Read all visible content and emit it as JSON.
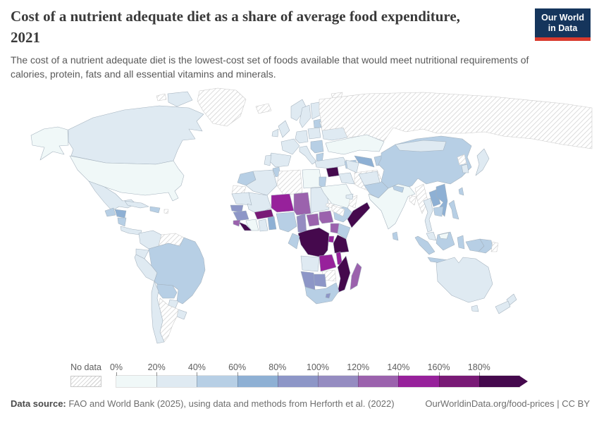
{
  "header": {
    "title_line1": "Cost of a nutrient adequate diet as a share of average food expenditure,",
    "title_line2": "2021",
    "subtitle_line1": "The cost of a nutrient adequate diet is the lowest-cost set of foods available that would meet nutritional requirements of",
    "subtitle_line2": "calories, protein, fats and all essential vitamins and minerals.",
    "logo": {
      "line1": "Our World",
      "line2": "in Data",
      "bg": "#15355c",
      "accent": "#d93a2d"
    }
  },
  "footer": {
    "source_label": "Data source:",
    "source_text": " FAO and World Bank (2025), using data and methods from Herforth et al. (2022)",
    "link_text": "OurWorldinData.org/food-prices | CC BY"
  },
  "chart_data": {
    "type": "heatmap",
    "subtype": "choropleth-world-map",
    "title": "Cost of a nutrient adequate diet as a share of average food expenditure, 2021",
    "year": "2021",
    "unit": "% of average food expenditure",
    "legend_position": "bottom",
    "no_data": {
      "label": "No data"
    },
    "bins": [
      {
        "tick": "0%",
        "range": "0-20%",
        "color": "#f0f8f8"
      },
      {
        "tick": "20%",
        "range": "20-40%",
        "color": "#dfeaf2"
      },
      {
        "tick": "40%",
        "range": "40-60%",
        "color": "#b7cfe5"
      },
      {
        "tick": "60%",
        "range": "60-80%",
        "color": "#8eb0d4"
      },
      {
        "tick": "80%",
        "range": "80-100%",
        "color": "#8d96c7"
      },
      {
        "tick": "100%",
        "range": "100-120%",
        "color": "#958cc1"
      },
      {
        "tick": "120%",
        "range": "120-140%",
        "color": "#9b62ad"
      },
      {
        "tick": "140%",
        "range": "140-160%",
        "color": "#97219b"
      },
      {
        "tick": "160%",
        "range": "160-180%",
        "color": "#791a76"
      },
      {
        "tick": "180%",
        "range": "180%+",
        "color": "#45094d"
      }
    ],
    "values": [
      {
        "id": "alaska",
        "country": "United States (Alaska)",
        "value": "0-20%",
        "bin": 0
      },
      {
        "id": "usa",
        "country": "United States",
        "value": "0-20%",
        "bin": 0
      },
      {
        "id": "canada",
        "country": "Canada",
        "value": "20-40%",
        "bin": 1
      },
      {
        "id": "baffin",
        "country": "Canada (Arctic islands)",
        "value": "20-40%",
        "bin": 1
      },
      {
        "id": "arctic-isl",
        "country": "Arctic islands",
        "value": "No data",
        "bin": "nodata"
      },
      {
        "id": "greenland",
        "country": "Greenland",
        "value": "No data",
        "bin": "nodata"
      },
      {
        "id": "mexico",
        "country": "Mexico",
        "value": "20-40%",
        "bin": 1
      },
      {
        "id": "guatemala",
        "country": "Guatemala",
        "value": "40-60%",
        "bin": 2
      },
      {
        "id": "honduras",
        "country": "Honduras",
        "value": "60-80%",
        "bin": 3
      },
      {
        "id": "nicaragua",
        "country": "Nicaragua",
        "value": "40-60%",
        "bin": 2
      },
      {
        "id": "costa-panama",
        "country": "Costa Rica and Panama",
        "value": "20-40%",
        "bin": 1
      },
      {
        "id": "cuba",
        "country": "Cuba",
        "value": "20-40%",
        "bin": 1
      },
      {
        "id": "hispaniola",
        "country": "Haiti and Dominican Republic",
        "value": "40-60%",
        "bin": 2
      },
      {
        "id": "caribbean-dot",
        "country": "Lesser Antilles",
        "value": "No data",
        "bin": "nodata"
      },
      {
        "id": "colombia",
        "country": "Colombia",
        "value": "20-40%",
        "bin": 1
      },
      {
        "id": "venezuela",
        "country": "Venezuela",
        "value": "No data",
        "bin": "nodata"
      },
      {
        "id": "guianas",
        "country": "Guyana and Suriname",
        "value": "20-40%",
        "bin": 1
      },
      {
        "id": "ecuador",
        "country": "Ecuador",
        "value": "20-40%",
        "bin": 1
      },
      {
        "id": "peru",
        "country": "Peru",
        "value": "20-40%",
        "bin": 1
      },
      {
        "id": "brazil",
        "country": "Brazil",
        "value": "40-60%",
        "bin": 2
      },
      {
        "id": "bolivia",
        "country": "Bolivia",
        "value": "40-60%",
        "bin": 2
      },
      {
        "id": "paraguay",
        "country": "Paraguay",
        "value": "20-40%",
        "bin": 1
      },
      {
        "id": "uruguay",
        "country": "Uruguay",
        "value": "20-40%",
        "bin": 1
      },
      {
        "id": "argentina",
        "country": "Argentina",
        "value": "No data",
        "bin": "nodata"
      },
      {
        "id": "chile",
        "country": "Chile",
        "value": "20-40%",
        "bin": 1
      },
      {
        "id": "iceland",
        "country": "Iceland",
        "value": "No data",
        "bin": "nodata"
      },
      {
        "id": "svalbard",
        "country": "Svalbard",
        "value": "No data",
        "bin": "nodata"
      },
      {
        "id": "uk",
        "country": "United Kingdom",
        "value": "20-40%",
        "bin": 1
      },
      {
        "id": "ireland",
        "country": "Ireland",
        "value": "20-40%",
        "bin": 1
      },
      {
        "id": "norway",
        "country": "Norway",
        "value": "20-40%",
        "bin": 1
      },
      {
        "id": "sweden",
        "country": "Sweden",
        "value": "20-40%",
        "bin": 1
      },
      {
        "id": "finland",
        "country": "Finland",
        "value": "20-40%",
        "bin": 1
      },
      {
        "id": "baltics",
        "country": "Baltic states",
        "value": "40-60%",
        "bin": 2
      },
      {
        "id": "belarus",
        "country": "Belarus",
        "value": "20-40%",
        "bin": 1
      },
      {
        "id": "poland",
        "country": "Poland",
        "value": "20-40%",
        "bin": 1
      },
      {
        "id": "germany",
        "country": "Germany",
        "value": "20-40%",
        "bin": 1
      },
      {
        "id": "france",
        "country": "France",
        "value": "20-40%",
        "bin": 1
      },
      {
        "id": "spain",
        "country": "Spain",
        "value": "20-40%",
        "bin": 1
      },
      {
        "id": "portugal",
        "country": "Portugal",
        "value": "20-40%",
        "bin": 1
      },
      {
        "id": "italy",
        "country": "Italy",
        "value": "20-40%",
        "bin": 1
      },
      {
        "id": "balkans",
        "country": "Balkans",
        "value": "40-60%",
        "bin": 2
      },
      {
        "id": "greece",
        "country": "Greece",
        "value": "40-60%",
        "bin": 2
      },
      {
        "id": "ukraine",
        "country": "Ukraine and Romania",
        "value": "20-40%",
        "bin": 1
      },
      {
        "id": "russia",
        "country": "Russia",
        "value": "No data",
        "bin": "nodata"
      },
      {
        "id": "morocco",
        "country": "Morocco",
        "value": "40-60%",
        "bin": 2
      },
      {
        "id": "wsahara",
        "country": "Western Sahara",
        "value": "No data",
        "bin": "nodata"
      },
      {
        "id": "algeria",
        "country": "Algeria",
        "value": "20-40%",
        "bin": 1
      },
      {
        "id": "tunisia",
        "country": "Tunisia",
        "value": "40-60%",
        "bin": 2
      },
      {
        "id": "libya",
        "country": "Libya",
        "value": "No data",
        "bin": "nodata"
      },
      {
        "id": "egypt",
        "country": "Egypt",
        "value": "0-20%",
        "bin": 0
      },
      {
        "id": "mauritania",
        "country": "Mauritania",
        "value": "20-40%",
        "bin": 1
      },
      {
        "id": "mali",
        "country": "Mali",
        "value": "20-40%",
        "bin": 1
      },
      {
        "id": "niger",
        "country": "Niger",
        "value": "140-160%",
        "bin": 7
      },
      {
        "id": "chad",
        "country": "Chad",
        "value": "120-140%",
        "bin": 6
      },
      {
        "id": "sudan",
        "country": "Sudan",
        "value": "20-40%",
        "bin": 1
      },
      {
        "id": "eritrea",
        "country": "Eritrea",
        "value": "No data",
        "bin": "nodata"
      },
      {
        "id": "senegal",
        "country": "Senegal and Gambia",
        "value": "80-100%",
        "bin": 4
      },
      {
        "id": "guinea",
        "country": "Guinea",
        "value": "80-100%",
        "bin": 4
      },
      {
        "id": "sierra-leone",
        "country": "Sierra Leone",
        "value": "120-140%",
        "bin": 6
      },
      {
        "id": "liberia",
        "country": "Liberia",
        "value": "180%+",
        "bin": 9
      },
      {
        "id": "ivory-coast",
        "country": "Cote d'Ivoire",
        "value": "0-20%",
        "bin": 0
      },
      {
        "id": "ghana",
        "country": "Ghana",
        "value": "20-40%",
        "bin": 1
      },
      {
        "id": "togo-benin",
        "country": "Togo and Benin",
        "value": "60-80%",
        "bin": 3
      },
      {
        "id": "burkina",
        "country": "Burkina Faso",
        "value": "160-180%",
        "bin": 8
      },
      {
        "id": "nigeria",
        "country": "Nigeria",
        "value": "40-60%",
        "bin": 2
      },
      {
        "id": "cameroon",
        "country": "Cameroon",
        "value": "100-120%",
        "bin": 5
      },
      {
        "id": "car",
        "country": "Central African Republic",
        "value": "120-140%",
        "bin": 6
      },
      {
        "id": "south-sudan",
        "country": "South Sudan",
        "value": "120-140%",
        "bin": 6
      },
      {
        "id": "ethiopia",
        "country": "Ethiopia",
        "value": "40-60%",
        "bin": 2
      },
      {
        "id": "somalia",
        "country": "Somalia",
        "value": "180%+",
        "bin": 9
      },
      {
        "id": "kenya",
        "country": "Kenya",
        "value": "40-60%",
        "bin": 2
      },
      {
        "id": "uganda",
        "country": "Uganda",
        "value": "120-140%",
        "bin": 6
      },
      {
        "id": "drc",
        "country": "Democratic Republic of Congo",
        "value": "180%+",
        "bin": 9
      },
      {
        "id": "congo-gabon",
        "country": "Congo and Gabon",
        "value": "40-60%",
        "bin": 2
      },
      {
        "id": "rwanda-burundi",
        "country": "Rwanda and Burundi",
        "value": "140-160%",
        "bin": 7
      },
      {
        "id": "tanzania",
        "country": "Tanzania",
        "value": "180%+",
        "bin": 9
      },
      {
        "id": "angola",
        "country": "Angola",
        "value": "20-40%",
        "bin": 1
      },
      {
        "id": "zambia",
        "country": "Zambia",
        "value": "140-160%",
        "bin": 7
      },
      {
        "id": "malawi",
        "country": "Malawi",
        "value": "140-160%",
        "bin": 7
      },
      {
        "id": "mozambique",
        "country": "Mozambique",
        "value": "180%+",
        "bin": 9
      },
      {
        "id": "zimbabwe",
        "country": "Zimbabwe",
        "value": "No data",
        "bin": "nodata"
      },
      {
        "id": "botswana",
        "country": "Botswana",
        "value": "80-100%",
        "bin": 4
      },
      {
        "id": "namibia",
        "country": "Namibia",
        "value": "80-100%",
        "bin": 4
      },
      {
        "id": "south-africa",
        "country": "South Africa",
        "value": "40-60%",
        "bin": 2
      },
      {
        "id": "lesotho",
        "country": "Lesotho",
        "value": "80-100%",
        "bin": 4
      },
      {
        "id": "madagascar",
        "country": "Madagascar",
        "value": "120-140%",
        "bin": 6
      },
      {
        "id": "turkey",
        "country": "Turkey",
        "value": "20-40%",
        "bin": 1
      },
      {
        "id": "caucasus",
        "country": "Caucasus states",
        "value": "40-60%",
        "bin": 2
      },
      {
        "id": "syria",
        "country": "Syria",
        "value": "180%+",
        "bin": 9
      },
      {
        "id": "levant",
        "country": "Lebanon, Israel and Jordan",
        "value": "40-60%",
        "bin": 2
      },
      {
        "id": "iraq",
        "country": "Iraq",
        "value": "20-40%",
        "bin": 1
      },
      {
        "id": "saudi",
        "country": "Saudi Arabia",
        "value": "0-20%",
        "bin": 0
      },
      {
        "id": "yemen",
        "country": "Yemen",
        "value": "No data",
        "bin": "nodata"
      },
      {
        "id": "oman",
        "country": "Oman",
        "value": "No data",
        "bin": "nodata"
      },
      {
        "id": "uae",
        "country": "United Arab Emirates",
        "value": "20-40%",
        "bin": 1
      },
      {
        "id": "iran",
        "country": "Iran",
        "value": "No data",
        "bin": "nodata"
      },
      {
        "id": "kazakhstan",
        "country": "Kazakhstan",
        "value": "0-20%",
        "bin": 0
      },
      {
        "id": "uzbekistan",
        "country": "Uzbekistan",
        "value": "60-80%",
        "bin": 3
      },
      {
        "id": "turkmenistan",
        "country": "Turkmenistan",
        "value": "20-40%",
        "bin": 1
      },
      {
        "id": "kyrgyz-tajik",
        "country": "Kyrgyzstan and Tajikistan",
        "value": "40-60%",
        "bin": 2
      },
      {
        "id": "afghanistan",
        "country": "Afghanistan",
        "value": "20-40%",
        "bin": 1
      },
      {
        "id": "pakistan",
        "country": "Pakistan",
        "value": "40-60%",
        "bin": 2
      },
      {
        "id": "india",
        "country": "India",
        "value": "0-20%",
        "bin": 0
      },
      {
        "id": "nepal",
        "country": "Nepal",
        "value": "40-60%",
        "bin": 2
      },
      {
        "id": "bangladesh",
        "country": "Bangladesh",
        "value": "No data",
        "bin": "nodata"
      },
      {
        "id": "sri-lanka",
        "country": "Sri Lanka",
        "value": "40-60%",
        "bin": 2
      },
      {
        "id": "china",
        "country": "China",
        "value": "40-60%",
        "bin": 2
      },
      {
        "id": "mongolia",
        "country": "Mongolia",
        "value": "20-40%",
        "bin": 1
      },
      {
        "id": "north-korea",
        "country": "North Korea",
        "value": "No data",
        "bin": "nodata"
      },
      {
        "id": "south-korea",
        "country": "South Korea",
        "value": "20-40%",
        "bin": 1
      },
      {
        "id": "japan",
        "country": "Japan",
        "value": "20-40%",
        "bin": 1
      },
      {
        "id": "taiwan",
        "country": "Taiwan",
        "value": "40-60%",
        "bin": 2
      },
      {
        "id": "myanmar",
        "country": "Myanmar",
        "value": "No data",
        "bin": "nodata"
      },
      {
        "id": "thailand",
        "country": "Thailand",
        "value": "20-40%",
        "bin": 1
      },
      {
        "id": "laos",
        "country": "Laos",
        "value": "60-80%",
        "bin": 3
      },
      {
        "id": "vietnam",
        "country": "Vietnam",
        "value": "60-80%",
        "bin": 3
      },
      {
        "id": "cambodia",
        "country": "Cambodia",
        "value": "40-60%",
        "bin": 2
      },
      {
        "id": "malaysia",
        "country": "Malaysia",
        "value": "20-40%",
        "bin": 1
      },
      {
        "id": "sumatra",
        "country": "Indonesia (Sumatra)",
        "value": "40-60%",
        "bin": 2
      },
      {
        "id": "java",
        "country": "Indonesia (Java)",
        "value": "40-60%",
        "bin": 2
      },
      {
        "id": "borneo",
        "country": "Indonesia (Kalimantan)",
        "value": "40-60%",
        "bin": 2
      },
      {
        "id": "sabah",
        "country": "Malaysia (Borneo)",
        "value": "0-20%",
        "bin": 0
      },
      {
        "id": "sulawesi",
        "country": "Indonesia (Sulawesi)",
        "value": "40-60%",
        "bin": 2
      },
      {
        "id": "philippines",
        "country": "Philippines",
        "value": "40-60%",
        "bin": 2
      },
      {
        "id": "west-papua",
        "country": "Indonesia (Papua)",
        "value": "40-60%",
        "bin": 2
      },
      {
        "id": "png",
        "country": "Papua New Guinea",
        "value": "40-60%",
        "bin": 2
      },
      {
        "id": "png-hatch",
        "country": "Solomon Islands",
        "value": "No data",
        "bin": "nodata"
      },
      {
        "id": "australia",
        "country": "Australia",
        "value": "20-40%",
        "bin": 1
      },
      {
        "id": "tasmania",
        "country": "Australia (Tasmania)",
        "value": "20-40%",
        "bin": 1
      },
      {
        "id": "nz-north",
        "country": "New Zealand (North Island)",
        "value": "20-40%",
        "bin": 1
      },
      {
        "id": "nz-south",
        "country": "New Zealand (South Island)",
        "value": "20-40%",
        "bin": 1
      }
    ]
  }
}
